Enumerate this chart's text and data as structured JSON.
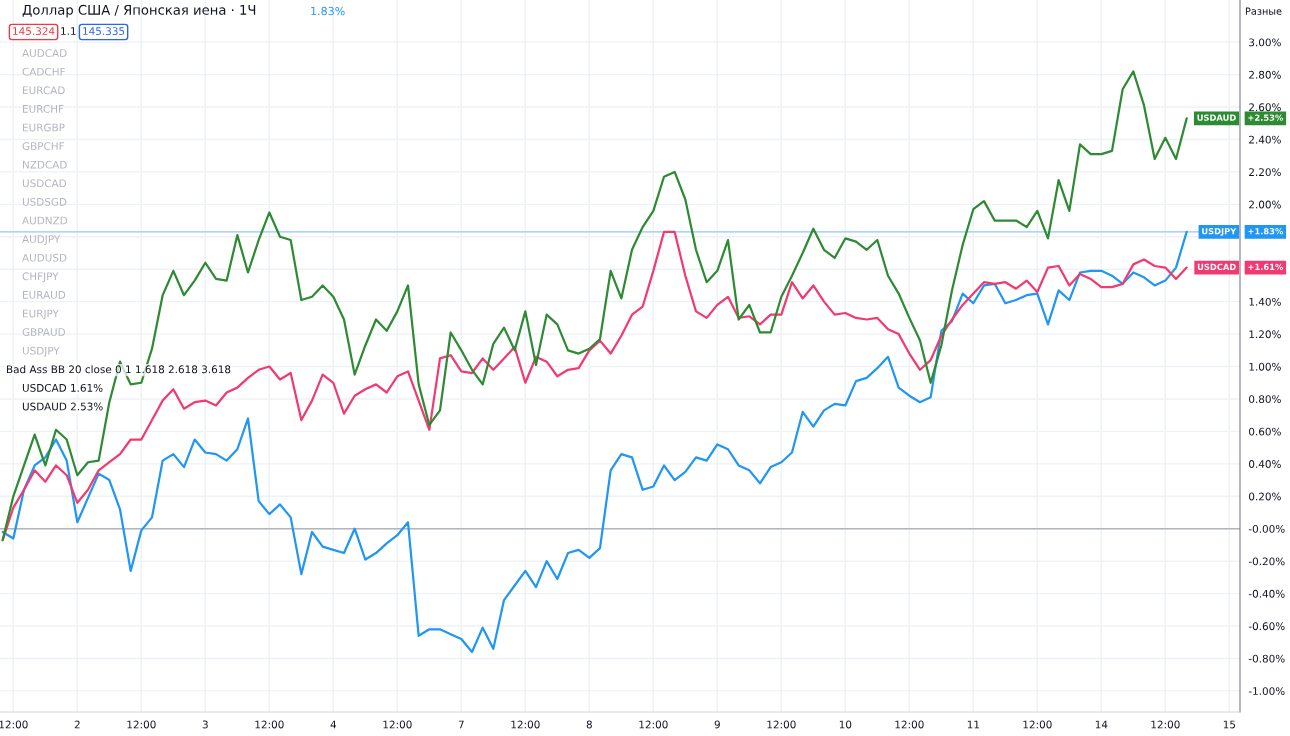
{
  "chart_data": {
    "type": "line",
    "title": "Доллар США / Японская иена · 1Ч",
    "annotations": [
      "1.83%",
      "145.324",
      "1.1",
      "145.335",
      "Разные",
      "AUDCAD",
      "CADCHF",
      "EURCAD",
      "EURCHF",
      "EURGBP",
      "GBPCHF",
      "NZDCAD",
      "USDCAD",
      "USDSGD",
      "AUDNZD",
      "AUDJPY",
      "AUDUSD",
      "CHFJPY",
      "EURAUD",
      "EURJPY",
      "GBPAUD",
      "USDJPY",
      "Bad Ass BB 20 close 0 1 1.618 2.618 3.618",
      "USDCAD 1.61%",
      "USDAUD 2.53%",
      "+1.83%",
      "+1.61%",
      "+2.53%"
    ],
    "legend": "right",
    "categories": [
      null,
      "12:00",
      null,
      null,
      null,
      null,
      null,
      "2",
      null,
      null,
      null,
      null,
      null,
      "12:00",
      null,
      null,
      null,
      null,
      null,
      "3",
      null,
      null,
      null,
      null,
      null,
      "12:00",
      null,
      null,
      null,
      null,
      null,
      "4",
      null,
      null,
      null,
      null,
      null,
      "12:00",
      null,
      null,
      null,
      null,
      null,
      "7",
      null,
      null,
      null,
      null,
      null,
      "12:00",
      null,
      null,
      null,
      null,
      null,
      "8",
      null,
      null,
      null,
      null,
      null,
      "12:00",
      null,
      null,
      null,
      null,
      null,
      "9",
      null,
      null,
      null,
      null,
      null,
      "12:00",
      null,
      null,
      null,
      null,
      null,
      "10",
      null,
      null,
      null,
      null,
      null,
      "12:00",
      null,
      null,
      null,
      null,
      null,
      "11",
      null,
      null,
      null,
      null,
      null,
      "12:00",
      null,
      null,
      null,
      null,
      null,
      "14",
      null,
      null,
      null,
      null,
      null,
      "12:00",
      null,
      null,
      null,
      null,
      null,
      "15"
    ],
    "series": [
      {
        "name": "USDJPY",
        "color": "#2196f3",
        "values": [
          -0.02,
          -0.06,
          0.24,
          0.39,
          0.44,
          0.55,
          0.42,
          0.04,
          0.19,
          0.34,
          0.3,
          0.12,
          -0.26,
          -0.01,
          0.07,
          0.42,
          0.46,
          0.38,
          0.55,
          0.47,
          0.46,
          0.42,
          0.49,
          0.68,
          0.17,
          0.09,
          0.15,
          0.07,
          -0.28,
          -0.02,
          -0.11,
          -0.13,
          -0.15,
          0.0,
          -0.19,
          -0.15,
          -0.09,
          -0.04,
          0.04,
          -0.66,
          -0.62,
          -0.62,
          -0.65,
          -0.68,
          -0.76,
          -0.61,
          -0.74,
          -0.44,
          -0.35,
          -0.26,
          -0.36,
          -0.2,
          -0.31,
          -0.15,
          -0.13,
          -0.18,
          -0.12,
          0.36,
          0.46,
          0.44,
          0.24,
          0.26,
          0.39,
          0.3,
          0.35,
          0.44,
          0.42,
          0.52,
          0.49,
          0.39,
          0.36,
          0.28,
          0.38,
          0.41,
          0.47,
          0.72,
          0.63,
          0.73,
          0.77,
          0.76,
          0.91,
          0.93,
          0.99,
          1.06,
          0.87,
          0.82,
          0.78,
          0.81,
          1.22,
          1.28,
          1.45,
          1.39,
          1.5,
          1.51,
          1.39,
          1.41,
          1.44,
          1.45,
          1.26,
          1.47,
          1.41,
          1.58,
          1.59,
          1.59,
          1.56,
          1.51,
          1.58,
          1.55,
          1.5,
          1.53,
          1.61,
          1.83,
          null,
          null,
          null,
          null
        ]
      },
      {
        "name": "USDCAD",
        "color": "#f23a72",
        "values": [
          -0.07,
          0.13,
          0.24,
          0.36,
          0.29,
          0.39,
          0.33,
          0.16,
          0.24,
          0.36,
          0.41,
          0.46,
          0.55,
          0.55,
          0.67,
          0.79,
          0.86,
          0.74,
          0.78,
          0.79,
          0.76,
          0.84,
          0.87,
          0.93,
          0.98,
          1.0,
          0.92,
          0.96,
          0.67,
          0.79,
          0.95,
          0.9,
          0.71,
          0.82,
          0.86,
          0.89,
          0.84,
          0.94,
          0.97,
          0.79,
          0.61,
          1.05,
          1.07,
          0.97,
          0.96,
          1.05,
          0.98,
          1.05,
          1.12,
          0.9,
          1.06,
          1.03,
          0.94,
          0.98,
          0.99,
          1.1,
          1.16,
          1.08,
          1.19,
          1.32,
          1.37,
          1.59,
          1.83,
          1.83,
          1.56,
          1.34,
          1.3,
          1.38,
          1.43,
          1.3,
          1.31,
          1.26,
          1.32,
          1.32,
          1.52,
          1.42,
          1.5,
          1.4,
          1.32,
          1.33,
          1.3,
          1.29,
          1.3,
          1.23,
          1.2,
          1.08,
          0.98,
          1.04,
          1.19,
          1.29,
          1.38,
          1.45,
          1.52,
          1.51,
          1.52,
          1.48,
          1.53,
          1.46,
          1.61,
          1.62,
          1.5,
          1.57,
          1.54,
          1.49,
          1.49,
          1.51,
          1.63,
          1.66,
          1.62,
          1.61,
          1.54,
          1.61,
          null,
          null,
          null,
          null
        ]
      },
      {
        "name": "USDAUD",
        "color": "#2f8a34",
        "values": [
          -0.07,
          0.2,
          0.39,
          0.58,
          0.39,
          0.61,
          0.55,
          0.33,
          0.41,
          0.42,
          0.78,
          1.03,
          0.89,
          0.9,
          1.11,
          1.44,
          1.59,
          1.44,
          1.53,
          1.64,
          1.54,
          1.53,
          1.81,
          1.58,
          1.78,
          1.95,
          1.8,
          1.78,
          1.41,
          1.43,
          1.5,
          1.43,
          1.29,
          0.95,
          1.13,
          1.29,
          1.22,
          1.34,
          1.5,
          0.89,
          0.64,
          0.73,
          1.21,
          1.1,
          0.98,
          0.89,
          1.14,
          1.24,
          1.1,
          1.34,
          1.01,
          1.32,
          1.26,
          1.1,
          1.08,
          1.11,
          1.17,
          1.59,
          1.42,
          1.72,
          1.86,
          1.96,
          2.17,
          2.2,
          2.03,
          1.72,
          1.52,
          1.59,
          1.78,
          1.29,
          1.38,
          1.21,
          1.21,
          1.43,
          1.56,
          1.7,
          1.85,
          1.72,
          1.67,
          1.79,
          1.77,
          1.72,
          1.78,
          1.56,
          1.45,
          1.3,
          1.16,
          0.9,
          1.13,
          1.47,
          1.75,
          1.97,
          2.02,
          1.9,
          1.9,
          1.9,
          1.86,
          1.96,
          1.79,
          2.15,
          1.96,
          2.37,
          2.31,
          2.31,
          2.33,
          2.71,
          2.82,
          2.61,
          2.28,
          2.41,
          2.28,
          2.53,
          null,
          null,
          null,
          null
        ]
      }
    ],
    "ylim": [
      -1.13,
      3.26
    ],
    "yticks": [
      {
        "value": -1.0,
        "label": "-1.00%"
      },
      {
        "value": -0.8,
        "label": "-0.80%"
      },
      {
        "value": -0.6,
        "label": "-0.60%"
      },
      {
        "value": -0.4,
        "label": "-0.40%"
      },
      {
        "value": -0.2,
        "label": "-0.20%"
      },
      {
        "value": 0,
        "label": "-0.00%"
      },
      {
        "value": 0.2,
        "label": "0.20%"
      },
      {
        "value": 0.4,
        "label": "0.40%"
      },
      {
        "value": 0.6,
        "label": "0.60%"
      },
      {
        "value": 0.8,
        "label": "0.80%"
      },
      {
        "value": 1.0,
        "label": "1.00%"
      },
      {
        "value": 1.2,
        "label": "1.20%"
      },
      {
        "value": 1.4,
        "label": "1.40%"
      },
      {
        "value": 1.6,
        "label": null
      },
      {
        "value": 1.8,
        "label": null
      },
      {
        "value": 2.0,
        "label": "2.00%"
      },
      {
        "value": 2.2,
        "label": "2.20%"
      },
      {
        "value": 2.4,
        "label": "2.40%"
      },
      {
        "value": 2.6,
        "label": "2.60%"
      },
      {
        "value": 2.8,
        "label": "2.80%"
      },
      {
        "value": 3.0,
        "label": "3.00%"
      }
    ],
    "ref_lines": [
      {
        "axis": "y",
        "value": 0,
        "color": "#b2b5be"
      },
      {
        "axis": "y",
        "value": 1.83,
        "color": "#90c8f8"
      }
    ],
    "grid": true,
    "marker": "none",
    "line_style": "solid"
  }
}
